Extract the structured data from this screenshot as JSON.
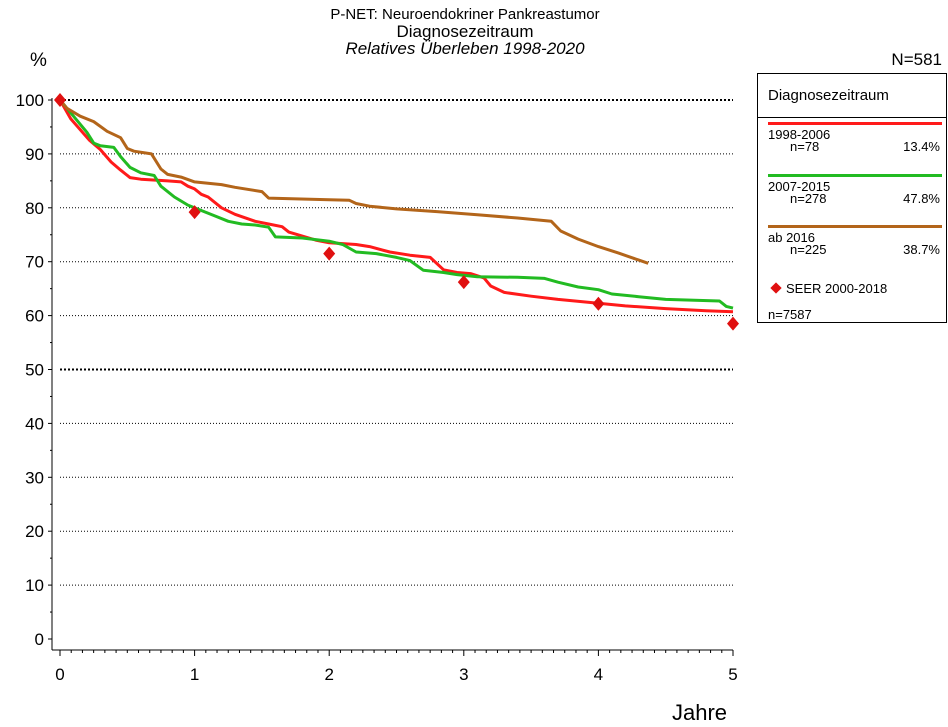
{
  "title": {
    "line1": "P-NET: Neuroendokriner Pankreastumor",
    "line2": "Diagnosezeitraum",
    "line3": "Relatives Überleben 1998-2020"
  },
  "y_unit": "%",
  "n_total": "N=581",
  "x_label": "Jahre",
  "legend": {
    "title": "Diagnosezeitraum",
    "entries": [
      {
        "name": "1998-2006",
        "n": "n=78",
        "pct": "13.4%",
        "color": "#ff1a1a"
      },
      {
        "name": "2007-2015",
        "n": "n=278",
        "pct": "47.8%",
        "color": "#22bb22"
      },
      {
        "name": "ab 2016",
        "n": "n=225",
        "pct": "38.7%",
        "color": "#b3651a"
      }
    ],
    "seer_label": "SEER 2000-2018",
    "seer_n": "n=7587"
  },
  "chart_data": {
    "type": "line",
    "xlabel": "Jahre",
    "ylabel": "%",
    "xlim": [
      0,
      5
    ],
    "ylim": [
      0,
      100
    ],
    "x_ticks": [
      0,
      1,
      2,
      3,
      4,
      5
    ],
    "y_ticks": [
      0,
      10,
      20,
      30,
      40,
      50,
      60,
      70,
      80,
      90,
      100
    ],
    "series": [
      {
        "name": "1998-2006",
        "color": "#ff1a1a",
        "points": [
          [
            0,
            100
          ],
          [
            0.08,
            96.5
          ],
          [
            0.15,
            94.5
          ],
          [
            0.22,
            92.5
          ],
          [
            0.3,
            90.8
          ],
          [
            0.38,
            88.5
          ],
          [
            0.45,
            87
          ],
          [
            0.52,
            85.6
          ],
          [
            0.6,
            85.3
          ],
          [
            0.8,
            85
          ],
          [
            0.9,
            84.8
          ],
          [
            0.95,
            84
          ],
          [
            1.0,
            83.5
          ],
          [
            1.05,
            82.5
          ],
          [
            1.1,
            82
          ],
          [
            1.2,
            80
          ],
          [
            1.3,
            78.8
          ],
          [
            1.45,
            77.5
          ],
          [
            1.55,
            77
          ],
          [
            1.65,
            76.5
          ],
          [
            1.7,
            75.5
          ],
          [
            1.9,
            74
          ],
          [
            2.0,
            73.5
          ],
          [
            2.2,
            73.2
          ],
          [
            2.3,
            72.8
          ],
          [
            2.45,
            71.8
          ],
          [
            2.6,
            71.2
          ],
          [
            2.75,
            70.8
          ],
          [
            2.85,
            68.5
          ],
          [
            2.95,
            68
          ],
          [
            3.05,
            67.8
          ],
          [
            3.15,
            67
          ],
          [
            3.2,
            65.5
          ],
          [
            3.3,
            64.3
          ],
          [
            3.5,
            63.6
          ],
          [
            3.7,
            63
          ],
          [
            4.0,
            62.3
          ],
          [
            4.2,
            61.8
          ],
          [
            4.5,
            61.3
          ],
          [
            4.8,
            60.9
          ],
          [
            5.0,
            60.7
          ]
        ]
      },
      {
        "name": "2007-2015",
        "color": "#22bb22",
        "points": [
          [
            0,
            100
          ],
          [
            0.1,
            97
          ],
          [
            0.2,
            94
          ],
          [
            0.25,
            92
          ],
          [
            0.3,
            91.5
          ],
          [
            0.4,
            91.2
          ],
          [
            0.45,
            89.5
          ],
          [
            0.52,
            87.5
          ],
          [
            0.6,
            86.5
          ],
          [
            0.7,
            86
          ],
          [
            0.75,
            84
          ],
          [
            0.85,
            82
          ],
          [
            0.95,
            80.5
          ],
          [
            1.05,
            79.5
          ],
          [
            1.15,
            78.5
          ],
          [
            1.25,
            77.5
          ],
          [
            1.35,
            77
          ],
          [
            1.45,
            76.8
          ],
          [
            1.55,
            76.4
          ],
          [
            1.6,
            74.6
          ],
          [
            1.8,
            74.4
          ],
          [
            2.0,
            73.8
          ],
          [
            2.1,
            73.2
          ],
          [
            2.2,
            71.8
          ],
          [
            2.35,
            71.5
          ],
          [
            2.5,
            70.8
          ],
          [
            2.6,
            70.2
          ],
          [
            2.7,
            68.4
          ],
          [
            2.85,
            68
          ],
          [
            2.95,
            67.6
          ],
          [
            3.1,
            67.2
          ],
          [
            3.4,
            67.1
          ],
          [
            3.6,
            66.9
          ],
          [
            3.7,
            66.2
          ],
          [
            3.85,
            65.3
          ],
          [
            4.0,
            64.8
          ],
          [
            4.1,
            64
          ],
          [
            4.3,
            63.5
          ],
          [
            4.5,
            63
          ],
          [
            4.9,
            62.7
          ],
          [
            4.95,
            61.7
          ],
          [
            5.0,
            61.4
          ]
        ]
      },
      {
        "name": "ab 2016",
        "color": "#b3651a",
        "points": [
          [
            0,
            100
          ],
          [
            0.05,
            98.5
          ],
          [
            0.15,
            97
          ],
          [
            0.25,
            96
          ],
          [
            0.35,
            94.2
          ],
          [
            0.45,
            93
          ],
          [
            0.5,
            91
          ],
          [
            0.55,
            90.5
          ],
          [
            0.68,
            90
          ],
          [
            0.75,
            87.2
          ],
          [
            0.8,
            86.2
          ],
          [
            0.9,
            85.7
          ],
          [
            1.0,
            84.8
          ],
          [
            1.2,
            84.3
          ],
          [
            1.3,
            83.8
          ],
          [
            1.5,
            83
          ],
          [
            1.55,
            81.8
          ],
          [
            2.0,
            81.5
          ],
          [
            2.15,
            81.4
          ],
          [
            2.2,
            80.8
          ],
          [
            2.3,
            80.3
          ],
          [
            2.5,
            79.8
          ],
          [
            2.8,
            79.3
          ],
          [
            3.1,
            78.7
          ],
          [
            3.4,
            78.1
          ],
          [
            3.65,
            77.5
          ],
          [
            3.72,
            75.7
          ],
          [
            3.85,
            74.2
          ],
          [
            4.0,
            72.8
          ],
          [
            4.15,
            71.6
          ],
          [
            4.3,
            70.3
          ],
          [
            4.37,
            69.7
          ]
        ]
      },
      {
        "name": "SEER 2000-2018",
        "color": "#e01010",
        "marker": "diamond",
        "points": [
          [
            0,
            100
          ],
          [
            1,
            79.2
          ],
          [
            2,
            71.5
          ],
          [
            3,
            66.2
          ],
          [
            4,
            62.2
          ],
          [
            5,
            58.5
          ]
        ]
      }
    ]
  }
}
